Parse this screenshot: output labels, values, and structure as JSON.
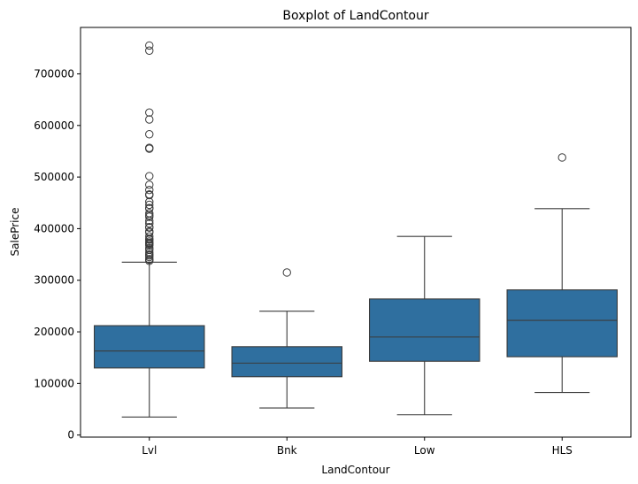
{
  "chart_data": {
    "type": "boxplot",
    "title": "Boxplot of LandContour",
    "xlabel": "LandContour",
    "ylabel": "SalePrice",
    "ylim": [
      -4000,
      790000
    ],
    "yticks": [
      0,
      100000,
      200000,
      300000,
      400000,
      500000,
      600000,
      700000
    ],
    "ytick_labels": [
      "0",
      "100000",
      "200000",
      "300000",
      "400000",
      "500000",
      "600000",
      "700000"
    ],
    "grid": false,
    "color": "#2f6f9f",
    "categories": [
      "Lvl",
      "Bnk",
      "Low",
      "HLS"
    ],
    "boxes": [
      {
        "label": "Lvl",
        "whisker_low": 34900,
        "q1": 130000,
        "median": 162900,
        "q3": 212000,
        "whisker_high": 335000,
        "outliers": [
          755000,
          745000,
          625000,
          611657,
          582933,
          556581,
          555000,
          501837,
          485000,
          475000,
          466500,
          465000,
          451950,
          446261,
          440000,
          438780,
          430000,
          426000,
          423000,
          415298,
          410000,
          402861,
          402000,
          394617,
          392500,
          385000,
          380000,
          378500,
          375000,
          372500,
          370878,
          369900,
          367294,
          361919,
          359100,
          354000,
          350000,
          348000,
          345000,
          341000,
          340000,
          337500
        ]
      },
      {
        "label": "Bnk",
        "whisker_low": 52500,
        "q1": 113000,
        "median": 139400,
        "q3": 171250,
        "whisker_high": 240000,
        "outliers": [
          315000
        ]
      },
      {
        "label": "Low",
        "whisker_low": 39300,
        "q1": 143000,
        "median": 190000,
        "q3": 263750,
        "whisker_high": 385000,
        "outliers": []
      },
      {
        "label": "HLS",
        "whisker_low": 82500,
        "q1": 151750,
        "median": 222250,
        "q3": 281347,
        "whisker_high": 438780,
        "outliers": [
          538000
        ]
      }
    ]
  }
}
